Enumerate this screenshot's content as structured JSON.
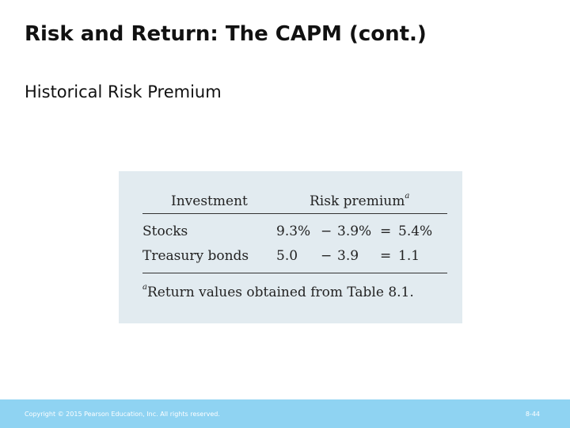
{
  "slide": {
    "title": "Risk and Return: The CAPM (cont.)",
    "subtitle": "Historical Risk Premium"
  },
  "table": {
    "headers": {
      "investment": "Investment",
      "risk_premium": "Risk premium",
      "risk_premium_note_mark": "a"
    },
    "rows": [
      {
        "investment": "Stocks",
        "return": "9.3%",
        "op1": "−",
        "risk_free": "3.9%",
        "op2": "=",
        "premium": "5.4%"
      },
      {
        "investment": "Treasury bonds",
        "return": "5.0",
        "op1": "−",
        "risk_free": "3.9",
        "op2": "=",
        "premium": "1.1"
      }
    ],
    "footnote_mark": "a",
    "footnote": "Return values obtained from Table 8.1."
  },
  "footer": {
    "copyright": "Copyright © 2015 Pearson Education, Inc. All rights reserved.",
    "page_number": "8-44"
  },
  "colors": {
    "table_background": "#e2ebf0",
    "footer_background": "#8fd3f2"
  }
}
